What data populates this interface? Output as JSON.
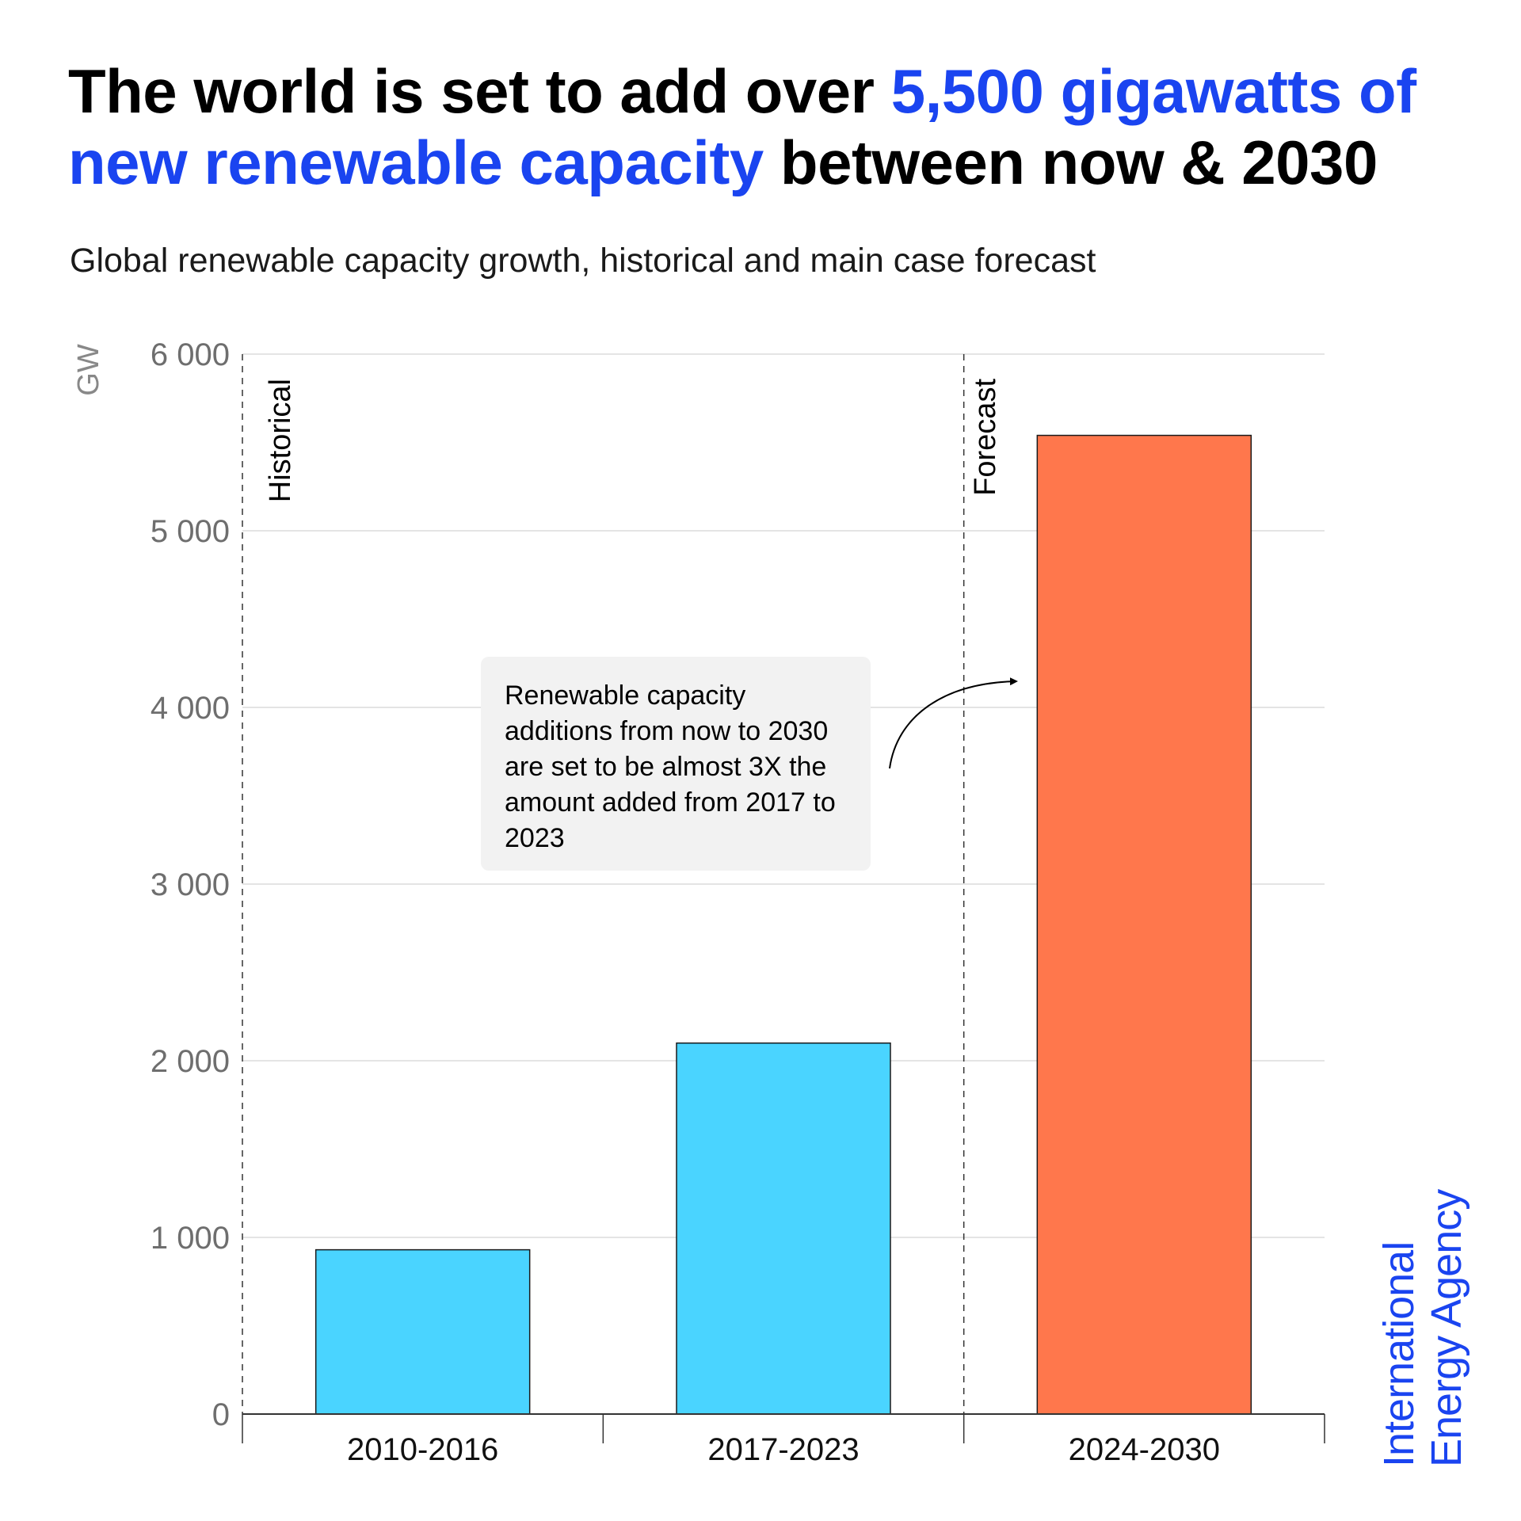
{
  "headline": {
    "part1": "The world is set to add over ",
    "highlight1": "5,500 gigawatts of",
    "highlight2": "new renewable capacity",
    "part2": " between now & 2030"
  },
  "subtitle": "Global renewable capacity growth, historical and main case forecast",
  "annotation": "Renewable capacity additions from now to 2030 are set to be almost 3X the amount added from 2017 to 2023",
  "logo": {
    "line1": "International",
    "line2": "Energy Agency"
  },
  "colors": {
    "historical": "#4ad4ff",
    "forecast": "#ff774c",
    "accent": "#1a44f0"
  },
  "chart_data": {
    "type": "bar",
    "categories": [
      "2010-2016",
      "2017-2023",
      "2024-2030"
    ],
    "values": [
      930,
      2100,
      5540
    ],
    "bar_colors": [
      "#4ad4ff",
      "#4ad4ff",
      "#ff774c"
    ],
    "title": "The world is set to add over 5,500 gigawatts of new renewable capacity between now & 2030",
    "subtitle": "Global renewable capacity growth, historical and main case forecast",
    "xlabel": "",
    "ylabel": "GW",
    "ylim": [
      0,
      6000
    ],
    "yticks": [
      0,
      1000,
      2000,
      3000,
      4000,
      5000,
      6000
    ],
    "ytick_labels": [
      "0",
      "1 000",
      "2 000",
      "3 000",
      "4 000",
      "5 000",
      "6 000"
    ],
    "grid": true,
    "period_labels": [
      "Historical",
      "Forecast"
    ]
  }
}
